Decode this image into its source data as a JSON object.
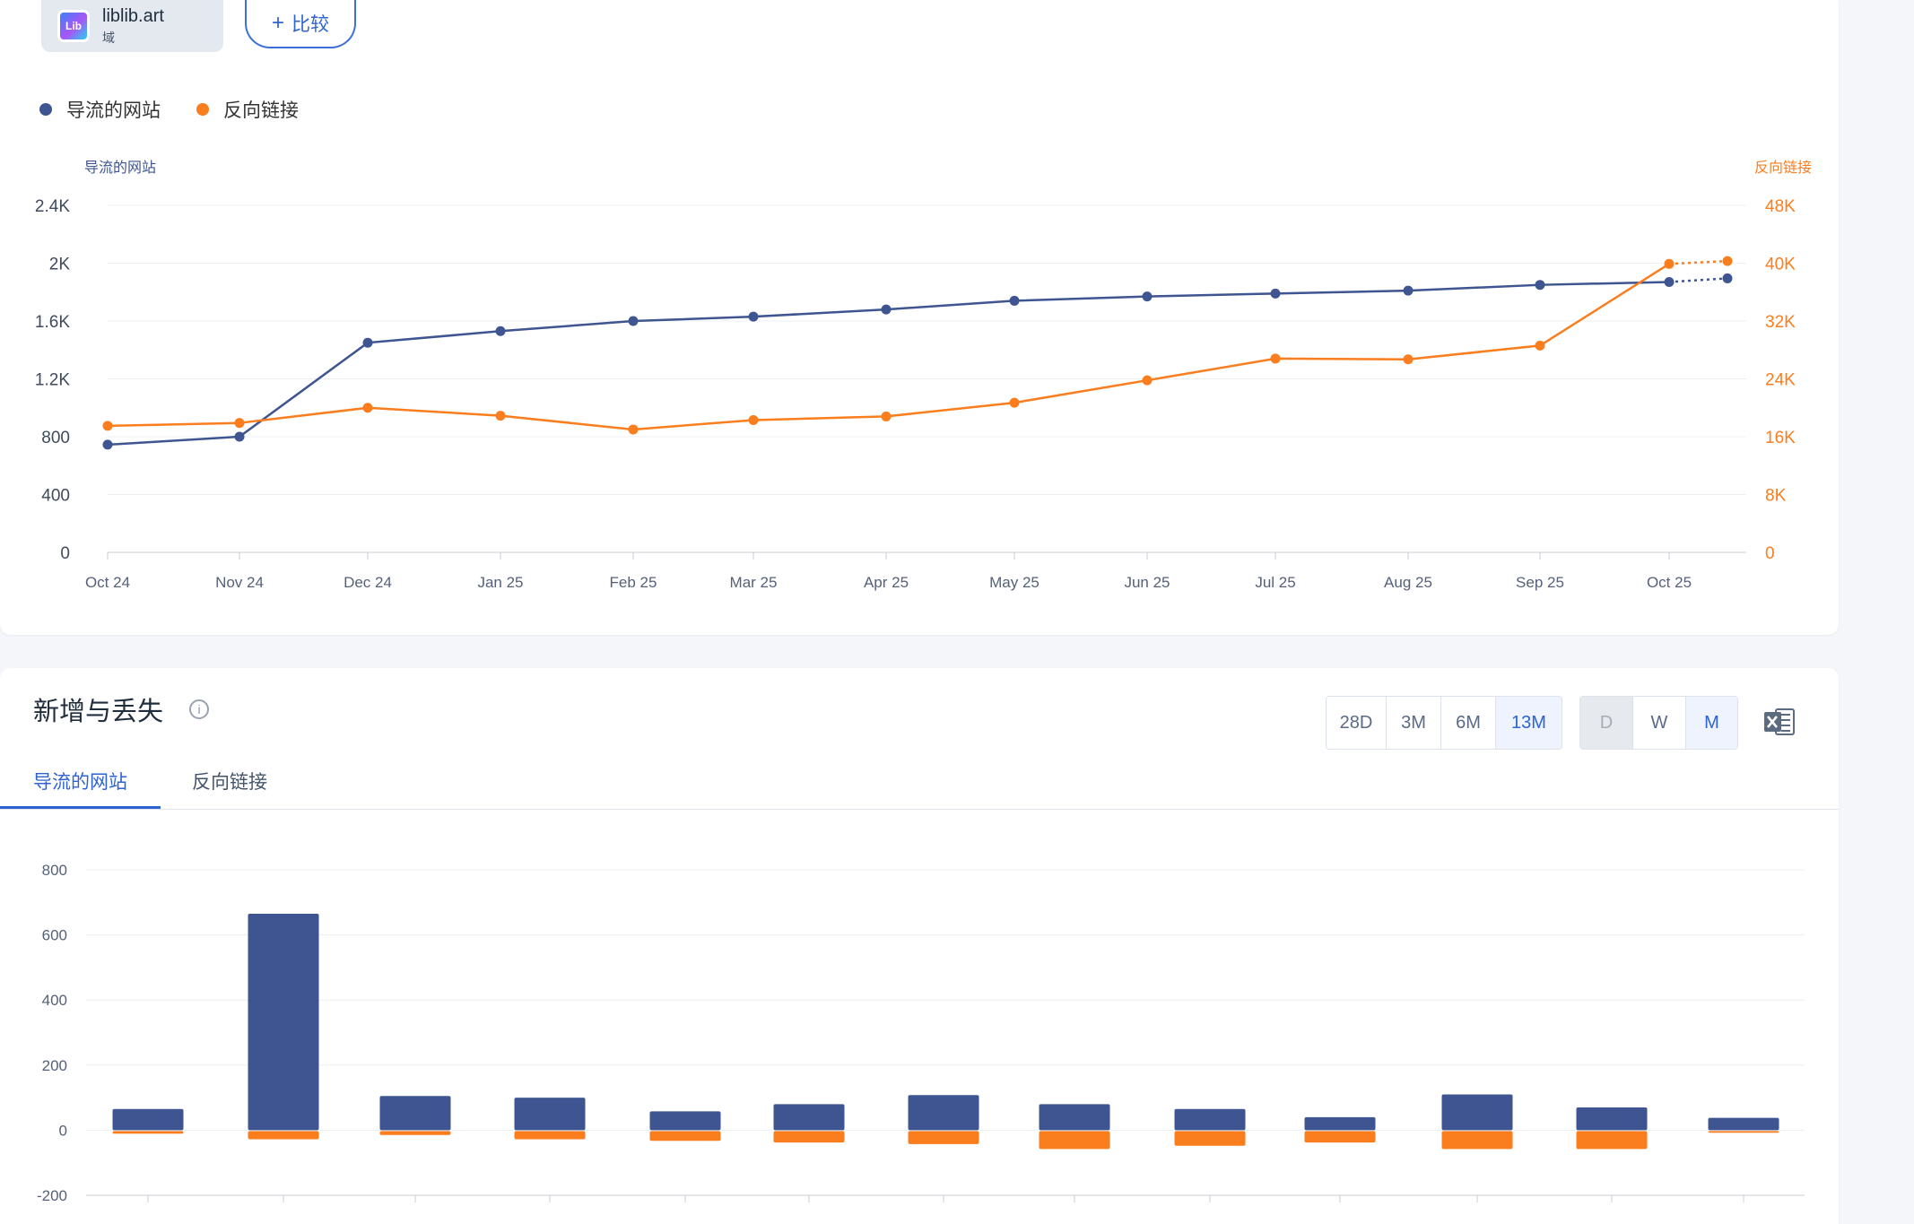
{
  "domain": {
    "name": "liblib.art",
    "type": "域",
    "logo_text": "Lib"
  },
  "compare_button": {
    "label": "比较",
    "icon": "plus-icon"
  },
  "legend": [
    {
      "label": "导流的网站",
      "color": "#3f5591"
    },
    {
      "label": "反向链接",
      "color": "#fa7d1e"
    }
  ],
  "chart_data": [
    {
      "type": "line",
      "x": [
        "Oct 24",
        "Nov 24",
        "Dec 24",
        "Jan 25",
        "Feb 25",
        "Mar 25",
        "Apr 25",
        "May 25",
        "Jun 25",
        "Jul 25",
        "Aug 25",
        "Sep 25",
        "Oct 25",
        ""
      ],
      "ylabel_left": "导流的网站",
      "ylabel_right": "反向链接",
      "yticks_left": [
        "0",
        "400",
        "800",
        "1.2K",
        "1.6K",
        "2K",
        "2.4K"
      ],
      "yticks_right": [
        "0",
        "8K",
        "16K",
        "24K",
        "32K",
        "40K",
        "48K"
      ],
      "ylim_left": [
        0,
        2400
      ],
      "ylim_right": [
        0,
        48000
      ],
      "series": [
        {
          "name": "导流的网站",
          "axis": "left",
          "color": "#3f5591",
          "values": [
            745,
            800,
            1450,
            1530,
            1600,
            1630,
            1680,
            1740,
            1770,
            1790,
            1810,
            1850,
            1870,
            1895
          ]
        },
        {
          "name": "反向链接",
          "axis": "right",
          "color": "#fa7d1e",
          "values": [
            17500,
            17900,
            20000,
            18900,
            17000,
            18300,
            18800,
            20700,
            23800,
            26800,
            26700,
            28600,
            39900,
            40300
          ]
        }
      ],
      "projected_last_point": true,
      "grid": true
    },
    {
      "type": "bar",
      "title": "新增与丢失",
      "categories": [
        "",
        "",
        "",
        "",
        "",
        "",
        "",
        "",
        "",
        "",
        "",
        "",
        ""
      ],
      "ylim": [
        -200,
        800
      ],
      "yticks": [
        "-200",
        "0",
        "200",
        "400",
        "600",
        "800"
      ],
      "series": [
        {
          "name": "新增",
          "color": "#3f5591",
          "values": [
            65,
            665,
            105,
            100,
            58,
            80,
            108,
            80,
            65,
            40,
            110,
            70,
            38
          ]
        },
        {
          "name": "丢失",
          "color": "#fa7d1e",
          "values": [
            -8,
            -25,
            -12,
            -25,
            -30,
            -35,
            -40,
            -55,
            -45,
            -35,
            -55,
            -55,
            -5
          ]
        }
      ],
      "grid": true
    }
  ],
  "section": {
    "title": "新增与丢失",
    "info_icon": "info-icon",
    "range_options": [
      "28D",
      "3M",
      "6M",
      "13M"
    ],
    "range_selected": "13M",
    "granularity_options": [
      "D",
      "W",
      "M"
    ],
    "granularity_selected": "M",
    "granularity_disabled": "D",
    "export_icon": "excel-icon",
    "tabs": [
      "导流的网站",
      "反向链接"
    ],
    "active_tab": "导流的网站"
  }
}
